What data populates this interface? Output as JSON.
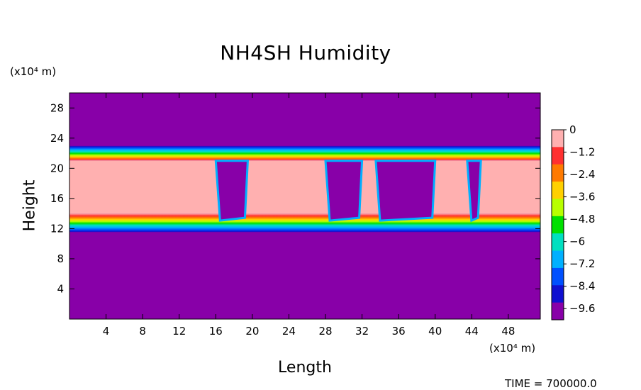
{
  "chart_data": {
    "type": "heatmap",
    "title": "NH4SH Humidity",
    "xlabel": "Length",
    "ylabel": "Height",
    "x_unit": "(x10⁴ m)",
    "y_unit": "(x10⁴ m)",
    "xlim": [
      0,
      51.5
    ],
    "ylim": [
      0,
      30
    ],
    "x_ticks": [
      "4",
      "8",
      "12",
      "16",
      "20",
      "24",
      "28",
      "32",
      "36",
      "40",
      "44",
      "48"
    ],
    "y_ticks": [
      "4",
      "8",
      "12",
      "16",
      "20",
      "24",
      "28"
    ],
    "grid": false,
    "colorbar": {
      "labels": [
        "0",
        "−1.2",
        "−2.4",
        "−3.6",
        "−4.8",
        "−6",
        "−7.2",
        "−8.4",
        "−9.6"
      ],
      "range": [
        -10.2,
        0
      ],
      "colors": [
        "#ffb0b0",
        "#ff3030",
        "#ff7a00",
        "#ffd000",
        "#b8ff00",
        "#00e000",
        "#00e0c0",
        "#00b0ff",
        "#0050ff",
        "#1010d0",
        "#8800a8"
      ]
    },
    "field_summary": {
      "background_value": -10.2,
      "saturated_layer_height": [
        14,
        21
      ],
      "gradient_layer_height": [
        21,
        23
      ],
      "dry_cells_x": [
        [
          16,
          19.5
        ],
        [
          28,
          32
        ],
        [
          33.5,
          40
        ],
        [
          43.5,
          45
        ]
      ]
    }
  },
  "footer": {
    "time_text": "TIME = 700000.0"
  }
}
